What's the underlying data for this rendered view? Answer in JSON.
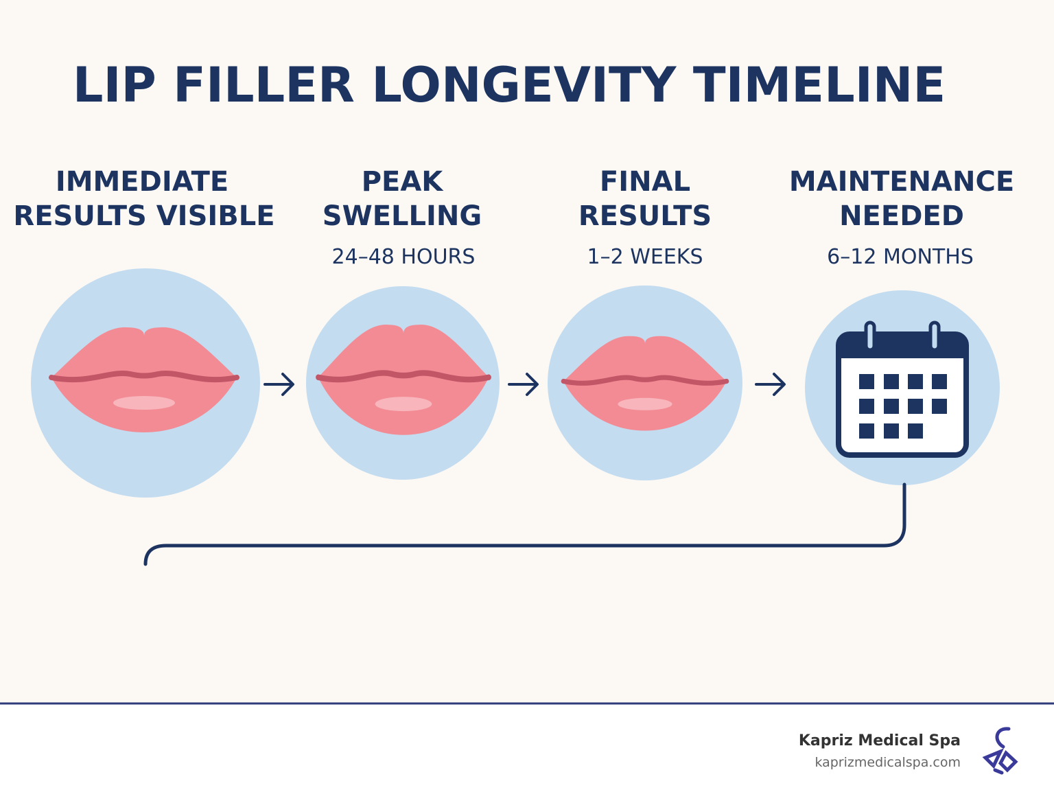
{
  "title": "LIP FILLER LONGEVITY TIMELINE",
  "steps": [
    {
      "title_lines": [
        "IMMEDIATE",
        "RESULTS VISIBLE"
      ]
    },
    {
      "title_lines": [
        "PEAK",
        "SWELLING"
      ],
      "duration": "24–48 HOURS"
    },
    {
      "title_lines": [
        "FINAL",
        "RESULTS"
      ],
      "duration": "1–2 WEEKS"
    },
    {
      "title_lines": [
        "MAINTENANCE",
        "NEEDED"
      ],
      "duration": "6–12 MONTHS"
    }
  ],
  "footer": {
    "brand": "Kapriz Medical Spa",
    "url": "kaprizmedicalspa.com"
  }
}
